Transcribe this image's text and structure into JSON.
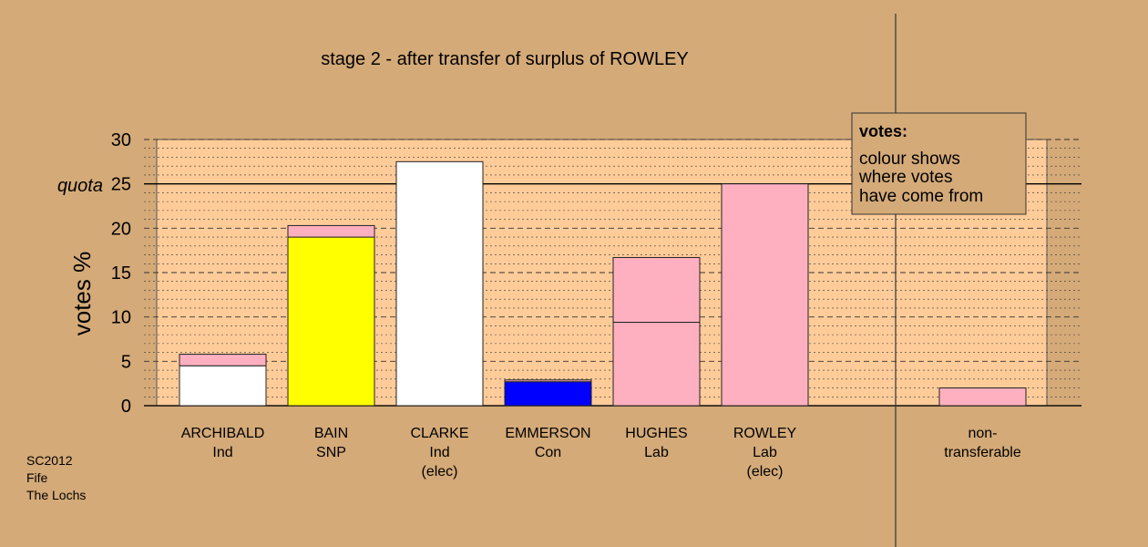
{
  "colors": {
    "background": "#d4aa78",
    "plot_area": "#ffcc99",
    "ind": "#ffffff",
    "snp": "#ffff00",
    "con": "#0000ff",
    "lab": "#ffb0c0"
  },
  "chart_data": {
    "type": "bar",
    "stacked": true,
    "title": "stage 2 - after transfer of surplus of ROWLEY",
    "ylabel": "votes %",
    "xlabel": "",
    "ylim": [
      0,
      30
    ],
    "yticks": [
      0,
      5,
      10,
      15,
      20,
      25,
      30
    ],
    "quota": {
      "label": "quota",
      "value": 25
    },
    "grid": true,
    "candidates": [
      {
        "name": "ARCHIBALD",
        "party": "Ind",
        "status": "",
        "segments": [
          {
            "value": 4.5,
            "color": "#ffffff"
          },
          {
            "value": 1.3,
            "color": "#ffb0c0"
          }
        ]
      },
      {
        "name": "BAIN",
        "party": "SNP",
        "status": "",
        "segments": [
          {
            "value": 19.0,
            "color": "#ffff00"
          },
          {
            "value": 1.3,
            "color": "#ffb0c0"
          }
        ]
      },
      {
        "name": "CLARKE",
        "party": "Ind",
        "status": "(elec)",
        "segments": [
          {
            "value": 27.5,
            "color": "#ffffff"
          }
        ]
      },
      {
        "name": "EMMERSON",
        "party": "Con",
        "status": "",
        "segments": [
          {
            "value": 2.7,
            "color": "#0000ff"
          },
          {
            "value": 0.2,
            "color": "#ffb0c0"
          }
        ]
      },
      {
        "name": "HUGHES",
        "party": "Lab",
        "status": "",
        "segments": [
          {
            "value": 9.4,
            "color": "#ffb0c0"
          },
          {
            "value": 7.3,
            "color": "#ffb0c0"
          }
        ]
      },
      {
        "name": "ROWLEY",
        "party": "Lab",
        "status": "(elec)",
        "segments": [
          {
            "value": 25.0,
            "color": "#ffb0c0"
          }
        ]
      }
    ],
    "nontransferable": {
      "label_line1": "non-",
      "label_line2": "transferable",
      "value": 2.0,
      "color": "#ffb0c0"
    },
    "legend": {
      "placement": "top-right",
      "title": "votes:",
      "lines": [
        "colour shows",
        "where votes",
        "have come from"
      ]
    },
    "footer": [
      "SC2012",
      "Fife",
      "The Lochs"
    ]
  }
}
